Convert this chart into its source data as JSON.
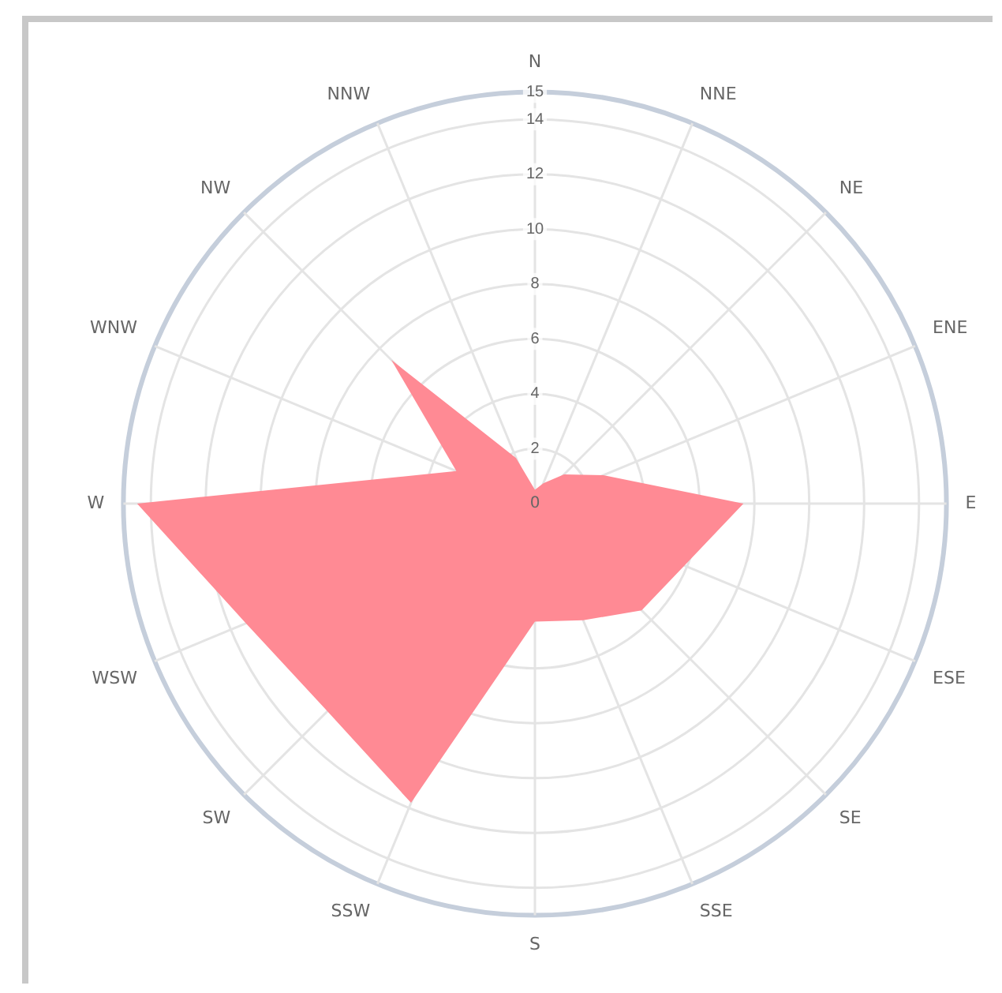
{
  "chart_data": {
    "type": "radar",
    "categories": [
      "N",
      "NNE",
      "NE",
      "ENE",
      "E",
      "ESE",
      "SE",
      "SSE",
      "S",
      "SSW",
      "SW",
      "WSW",
      "W",
      "WNW",
      "NW",
      "NNW"
    ],
    "series": [
      {
        "color": "#ff8a94",
        "values": [
          0.5,
          0.8,
          1.5,
          2.7,
          7.6,
          5.9,
          5.5,
          4.6,
          4.3,
          11.8,
          10.7,
          11.4,
          14.5,
          3.1,
          7.4,
          1.8
        ]
      }
    ],
    "ylim": [
      0,
      15
    ],
    "yticks": [
      0,
      2,
      4,
      6,
      8,
      10,
      12,
      14,
      15
    ],
    "grid": true,
    "legend": false
  }
}
